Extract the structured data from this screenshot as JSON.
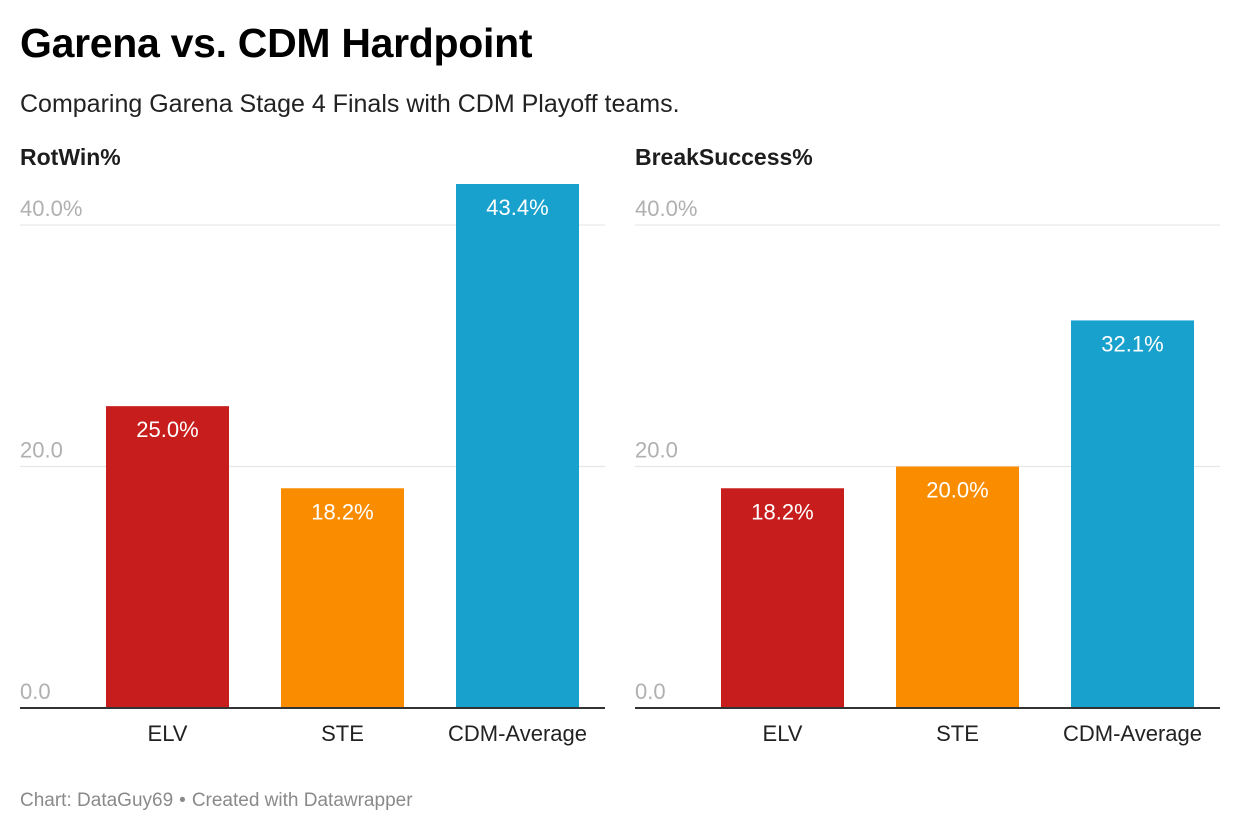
{
  "title": "Garena vs. CDM Hardpoint",
  "subtitle": "Comparing Garena Stage 4 Finals with CDM Playoff teams.",
  "footer": {
    "chart_label": "Chart:",
    "author": "DataGuy69",
    "separator": "•",
    "created_with": "Created with Datawrapper"
  },
  "colors": {
    "ELV": "#c71e1d",
    "STE": "#fa8c00",
    "CDM-Average": "#18a1cd",
    "grid": "#e6e6e6",
    "axis": "#333333",
    "tick_label": "#b0b0b0"
  },
  "chart_data": [
    {
      "type": "bar",
      "title": "RotWin%",
      "categories": [
        "ELV",
        "STE",
        "CDM-Average"
      ],
      "values": [
        25.0,
        18.2,
        43.4
      ],
      "value_labels": [
        "25.0%",
        "18.2%",
        "43.4%"
      ],
      "yticks": [
        0,
        20,
        40
      ],
      "ytick_labels": [
        "0.0",
        "20.0",
        "40.0%"
      ],
      "ylim": [
        0,
        43.4
      ],
      "xlabel": "",
      "ylabel": ""
    },
    {
      "type": "bar",
      "title": "BreakSuccess%",
      "categories": [
        "ELV",
        "STE",
        "CDM-Average"
      ],
      "values": [
        18.2,
        20.0,
        32.1
      ],
      "value_labels": [
        "18.2%",
        "20.0%",
        "32.1%"
      ],
      "yticks": [
        0,
        20,
        40
      ],
      "ytick_labels": [
        "0.0",
        "20.0",
        "40.0%"
      ],
      "ylim": [
        0,
        43.4
      ],
      "xlabel": "",
      "ylabel": ""
    }
  ]
}
